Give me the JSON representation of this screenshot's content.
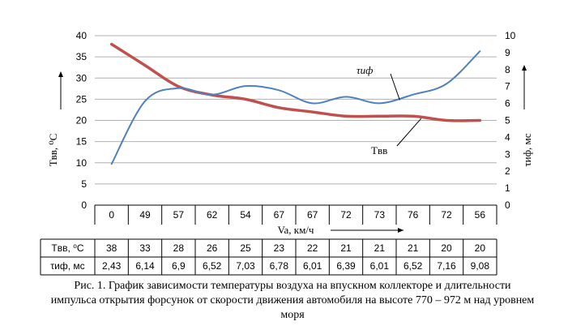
{
  "chart_data": {
    "type": "line",
    "categories": [
      "0",
      "49",
      "57",
      "62",
      "54",
      "67",
      "67",
      "72",
      "73",
      "76",
      "72",
      "56"
    ],
    "xlabel": "Va, км/ч",
    "ylabel_left": "Tвв, ⁰С",
    "ylabel_right": "τиф, мс",
    "ylim_left": [
      0,
      40
    ],
    "ylim_right": [
      0,
      10
    ],
    "yticks_left": [
      "0",
      "5",
      "10",
      "15",
      "20",
      "25",
      "30",
      "35",
      "40"
    ],
    "yticks_right": [
      "0",
      "1",
      "2",
      "3",
      "4",
      "5",
      "6",
      "7",
      "8",
      "9",
      "10"
    ],
    "grid": true,
    "series": [
      {
        "name": "Tвв",
        "axis": "left",
        "color": "#C0504D",
        "values": [
          38,
          33,
          28,
          26,
          25,
          23,
          22,
          21,
          21,
          21,
          20,
          20
        ]
      },
      {
        "name": "τиф",
        "axis": "right",
        "color": "#4F81BD",
        "values": [
          2.43,
          6.14,
          6.9,
          6.52,
          7.03,
          6.78,
          6.01,
          6.39,
          6.01,
          6.52,
          7.16,
          9.08
        ]
      }
    ],
    "table": {
      "rows": [
        {
          "label": "Tвв, ⁰С",
          "values": [
            "38",
            "33",
            "28",
            "26",
            "25",
            "23",
            "22",
            "21",
            "21",
            "21",
            "20",
            "20"
          ]
        },
        {
          "label": "τиф, мс",
          "values": [
            "2,43",
            "6,14",
            "6,9",
            "6,52",
            "7,03",
            "6,78",
            "6,01",
            "6,39",
            "6,01",
            "6,52",
            "7,16",
            "9,08"
          ]
        }
      ]
    }
  },
  "caption": {
    "line1": "Рис. 1. График зависимости температуры воздуха на впускном коллекторе и длительности",
    "line2": "импульса открытия форсунок от скорости движения автомобиля на высоте 770 – 972 м над уровнем",
    "line3": "моря"
  }
}
